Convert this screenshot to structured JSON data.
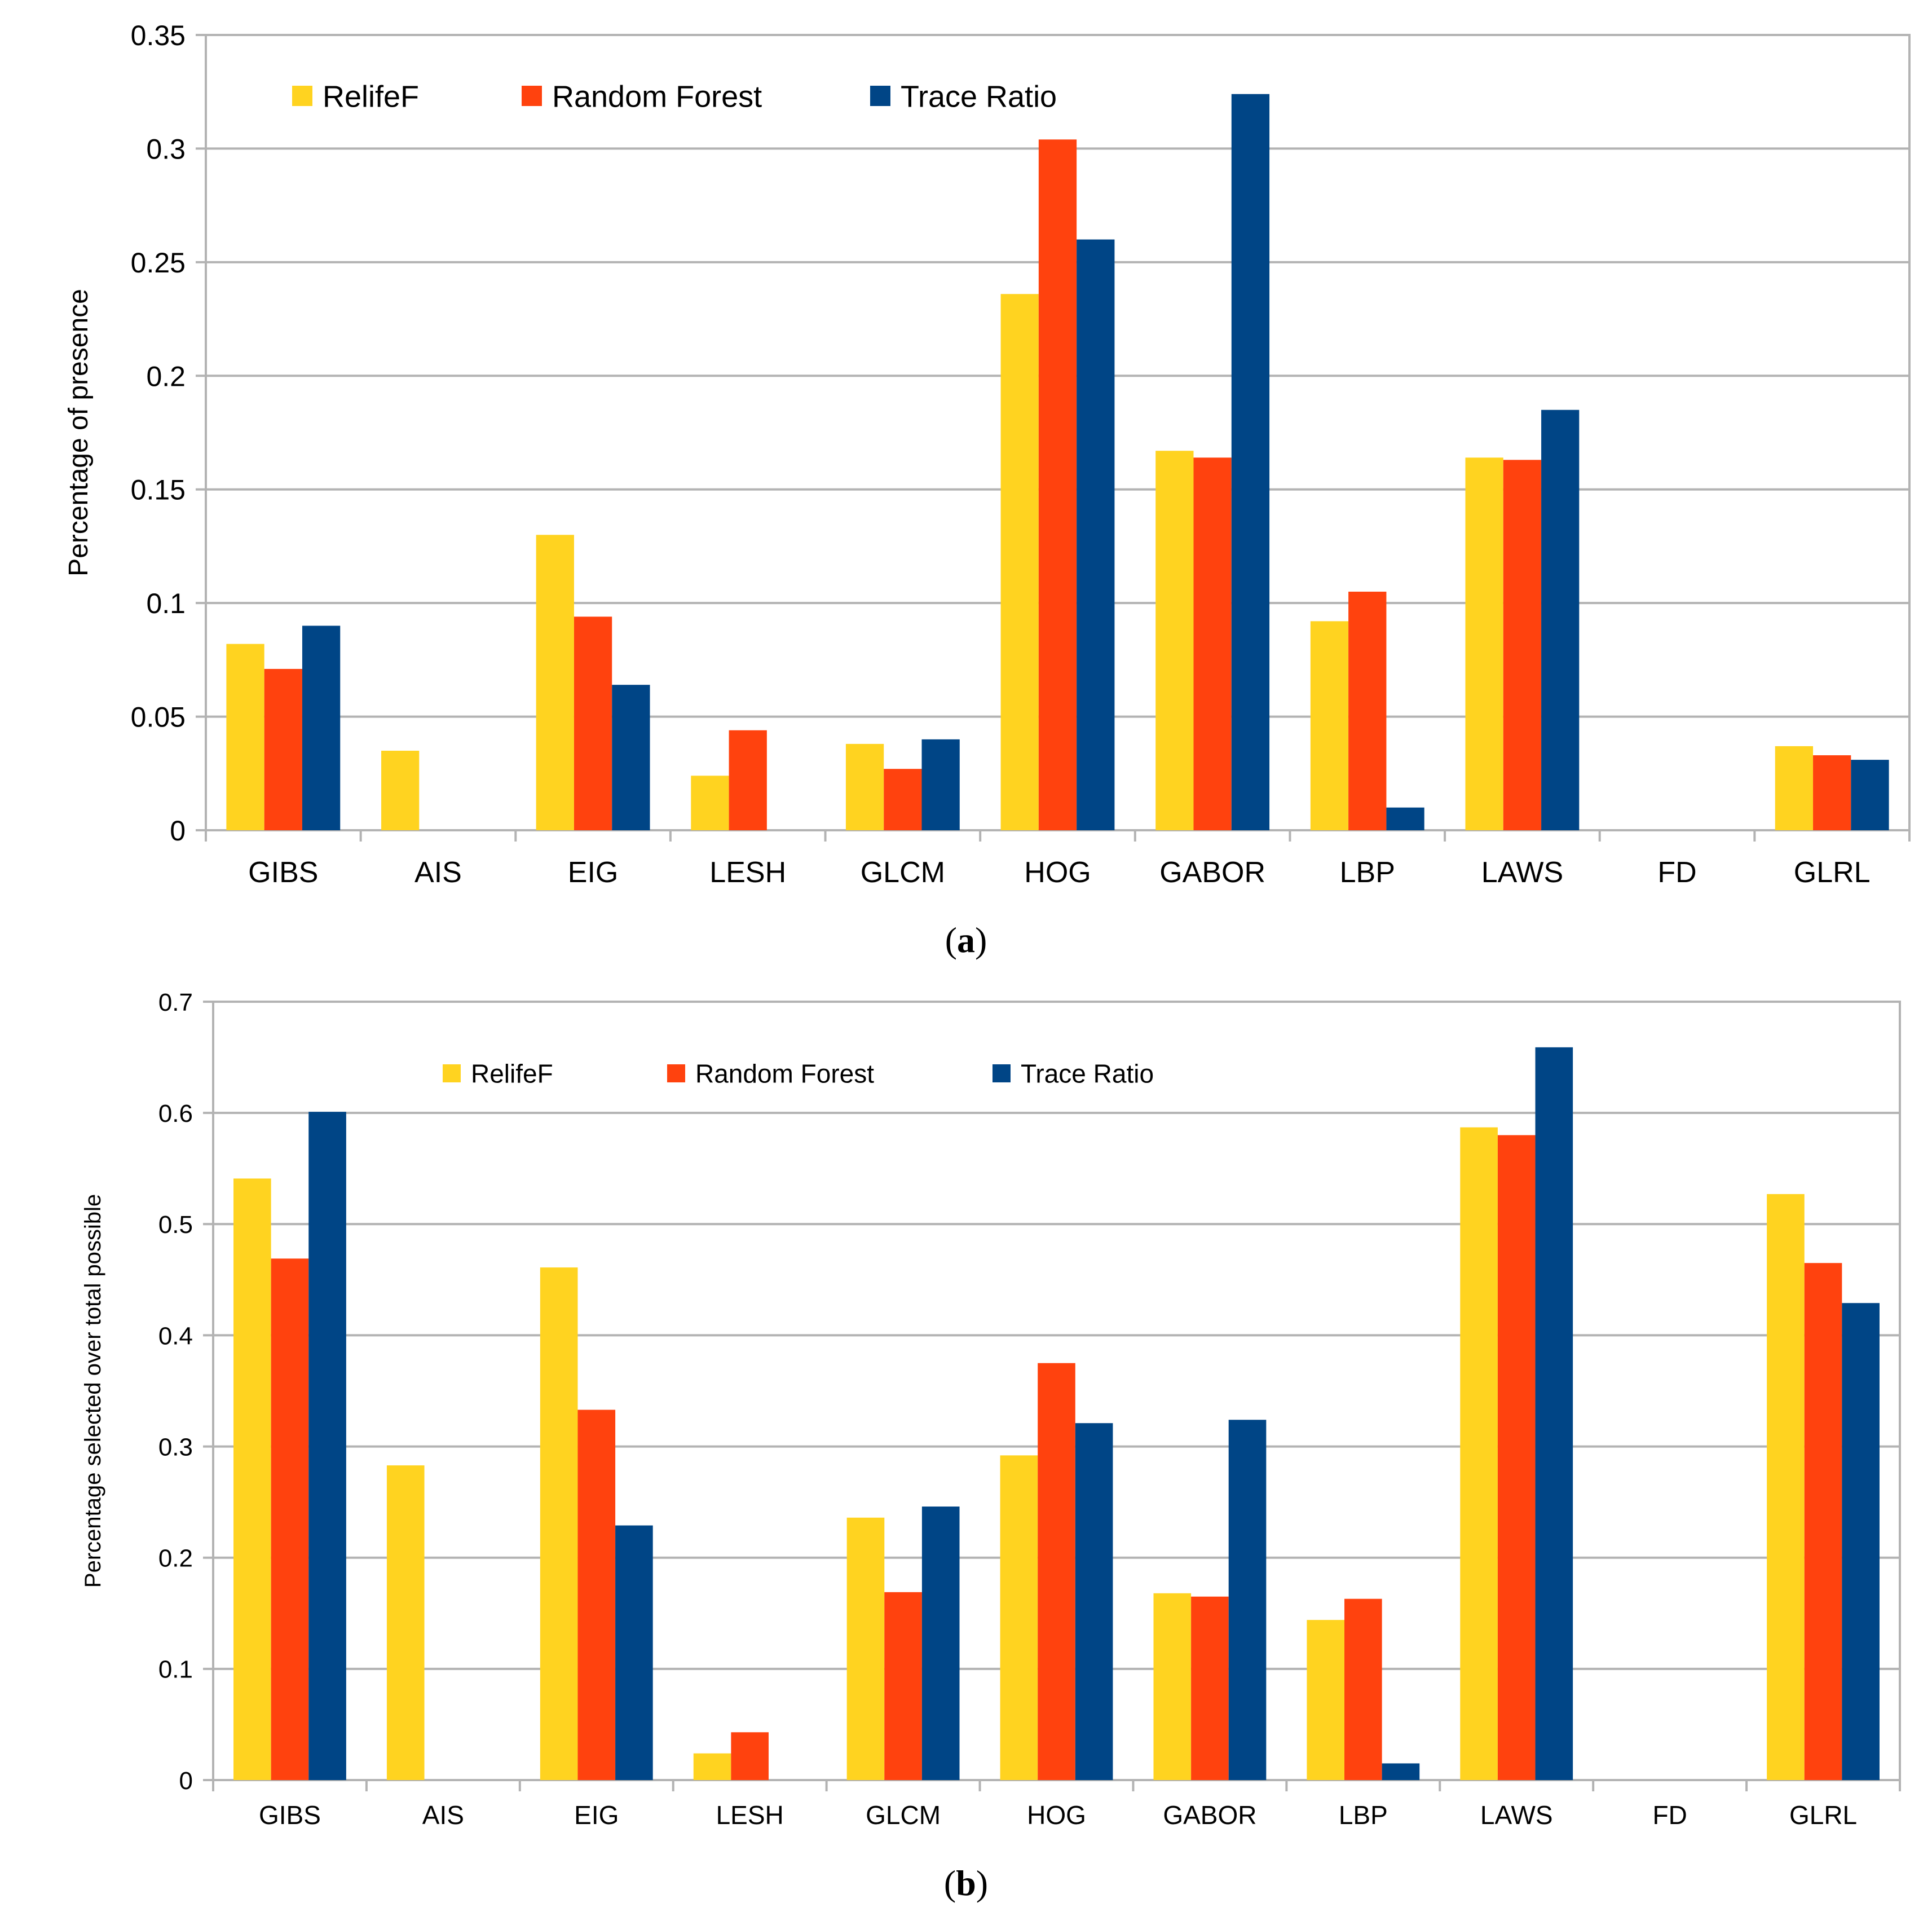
{
  "colors": {
    "relieff": "#FFD320",
    "rf": "#FF420E",
    "trace": "#004586",
    "grid": "#b3b3b3",
    "axis": "#b3b3b3"
  },
  "chart_data": [
    {
      "type": "bar",
      "panel": "a",
      "caption_label": "a",
      "ylabel": "Percentage of presence",
      "ylim": [
        0,
        0.35
      ],
      "yticks": [
        "0",
        "0.05",
        "0.1",
        "0.15",
        "0.2",
        "0.25",
        "0.3",
        "0.35"
      ],
      "categories": [
        "GIBS",
        "AIS",
        "EIG",
        "LESH",
        "GLCM",
        "HOG",
        "GABOR",
        "LBP",
        "LAWS",
        "FD",
        "GLRL"
      ],
      "series": [
        {
          "name": "RelifeF",
          "values": [
            0.082,
            0.035,
            0.13,
            0.024,
            0.038,
            0.236,
            0.167,
            0.092,
            0.164,
            0,
            0.037
          ]
        },
        {
          "name": "Random Forest",
          "values": [
            0.071,
            0,
            0.094,
            0.044,
            0.027,
            0.304,
            0.164,
            0.105,
            0.163,
            0,
            0.033
          ]
        },
        {
          "name": "Trace Ratio",
          "values": [
            0.09,
            0,
            0.064,
            0,
            0.04,
            0.26,
            0.324,
            0.01,
            0.185,
            0,
            0.031
          ]
        }
      ],
      "legend": "top-left"
    },
    {
      "type": "bar",
      "panel": "b",
      "caption_label": "b",
      "ylabel": "Percentage selected over total possible",
      "ylim": [
        0,
        0.7
      ],
      "yticks": [
        "0",
        "0.1",
        "0.2",
        "0.3",
        "0.4",
        "0.5",
        "0.6",
        "0.7"
      ],
      "categories": [
        "GIBS",
        "AIS",
        "EIG",
        "LESH",
        "GLCM",
        "HOG",
        "GABOR",
        "LBP",
        "LAWS",
        "FD",
        "GLRL"
      ],
      "series": [
        {
          "name": "RelifeF",
          "values": [
            0.541,
            0.283,
            0.461,
            0.024,
            0.236,
            0.292,
            0.168,
            0.144,
            0.587,
            0,
            0.527
          ]
        },
        {
          "name": "Random Forest",
          "values": [
            0.469,
            0,
            0.333,
            0.043,
            0.169,
            0.375,
            0.165,
            0.163,
            0.58,
            0,
            0.465
          ]
        },
        {
          "name": "Trace Ratio",
          "values": [
            0.601,
            0,
            0.229,
            0,
            0.246,
            0.321,
            0.324,
            0.015,
            0.659,
            0,
            0.429
          ]
        }
      ],
      "legend": "top-left"
    }
  ]
}
